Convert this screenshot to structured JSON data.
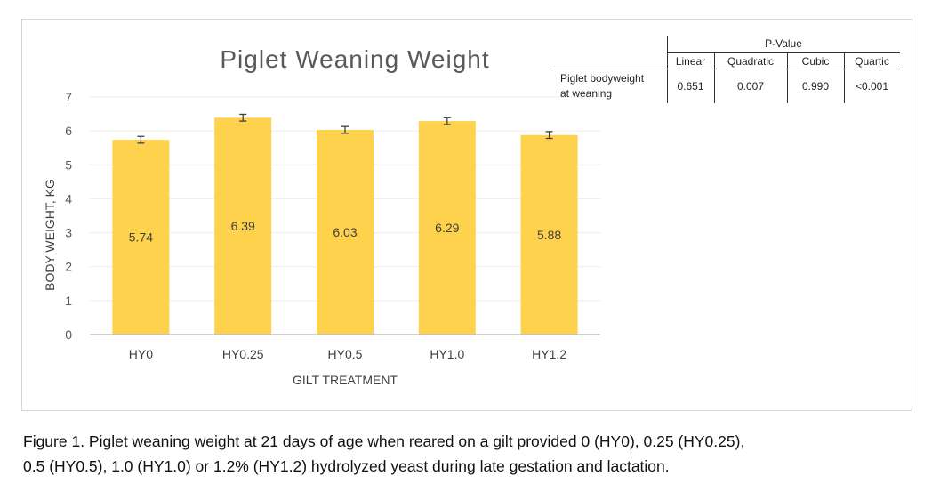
{
  "chart_data": {
    "type": "bar",
    "title": "Piglet Weaning Weight",
    "xlabel": "GILT TREATMENT",
    "ylabel": "BODY WEIGHT, KG",
    "categories": [
      "HY0",
      "HY0.25",
      "HY0.5",
      "HY1.0",
      "HY1.2"
    ],
    "values": [
      5.74,
      6.39,
      6.03,
      6.29,
      5.88
    ],
    "value_labels": [
      "5.74",
      "6.39",
      "6.03",
      "6.29",
      "5.88"
    ],
    "error": [
      0.1,
      0.1,
      0.1,
      0.1,
      0.1
    ],
    "ylim": [
      0,
      7
    ],
    "yticks": [
      "0",
      "1",
      "2",
      "3",
      "4",
      "5",
      "6",
      "7"
    ],
    "grid": true,
    "legend": "none",
    "bar_color": "#FFD24D"
  },
  "pvalue_table": {
    "header": "P-Value",
    "columns": [
      "Linear",
      "Quadratic",
      "Cubic",
      "Quartic"
    ],
    "row_label_line1": "Piglet bodyweight",
    "row_label_line2": "at weaning",
    "values": [
      "0.651",
      "0.007",
      "0.990",
      "<0.001"
    ]
  },
  "caption": {
    "line1": "Figure 1. Piglet weaning weight at 21 days of age when reared on a gilt provided 0 (HY0), 0.25 (HY0.25),",
    "line2": "0.5 (HY0.5), 1.0 (HY1.0) or 1.2% (HY1.2) hydrolyzed yeast during late gestation and lactation."
  }
}
